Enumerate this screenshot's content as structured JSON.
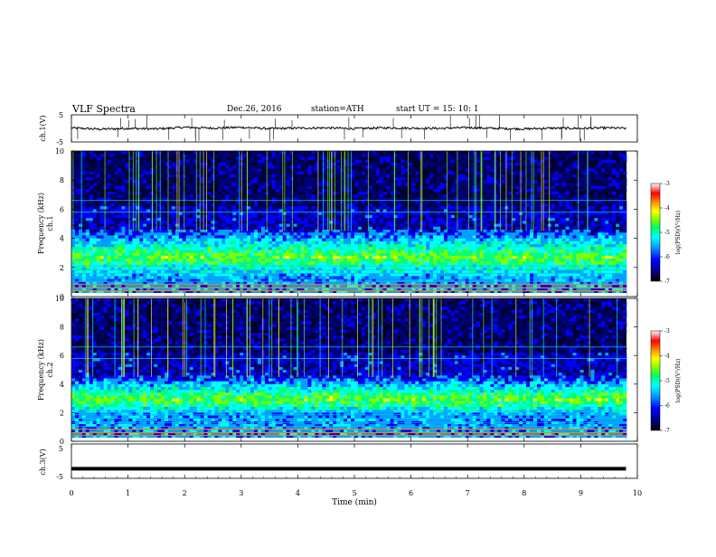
{
  "header": {
    "title": "VLF  Spectra",
    "date": "Dec.26, 2016",
    "station": "station=ATH",
    "start_ut": "start  UT  =    15: 10: 1"
  },
  "colors": {
    "spectrogram_scale": [
      "#000000",
      "#00007a",
      "#0000ff",
      "#00a0ff",
      "#00ffff",
      "#00ff80",
      "#80ff00",
      "#ffff00",
      "#ff8000",
      "#ff0000",
      "#ffffff"
    ],
    "trace": "#000000"
  },
  "chart_data": [
    {
      "type": "line",
      "panel": "ch.1 waveform",
      "ylabel": "ch.1(V)",
      "ylim": [
        -5,
        5
      ],
      "yticks": [
        "5",
        "-5"
      ],
      "xlim": [
        0,
        10
      ],
      "x_units": "min",
      "x": [
        0,
        0.5,
        1,
        1.5,
        2,
        2.5,
        3,
        3.5,
        4,
        4.5,
        5,
        5.5,
        6,
        6.5,
        7,
        7.5,
        8,
        8.5,
        9,
        9.5,
        9.8
      ],
      "y": [
        0.2,
        -0.3,
        0.0,
        -0.2,
        0.4,
        0.1,
        0.4,
        -0.1,
        0.1,
        0.2,
        -0.1,
        0.2,
        0.1,
        0.0,
        0.3,
        0.0,
        -0.2,
        0.1,
        0.0,
        0.2,
        0.0
      ]
    },
    {
      "type": "heatmap",
      "panel": "ch.1 spectrogram",
      "ylabel": "ch.1\nFrequency (kHz)",
      "ylim": [
        0,
        10
      ],
      "yticks": [
        "0",
        "2",
        "4",
        "6",
        "8",
        "10"
      ],
      "xlim": [
        0,
        10
      ],
      "colorbar_label": "log(PSD)(V²/Hz)",
      "colorbar_range": [
        -7,
        -3
      ],
      "colorbar_ticks": [
        "-3",
        "-4",
        "-5",
        "-6",
        "-7"
      ],
      "band_kHz": [
        1.5,
        4.5
      ],
      "band_level": -5
    },
    {
      "type": "heatmap",
      "panel": "ch.2 spectrogram",
      "ylabel": "ch.2\nFrequency (kHz)",
      "ylim": [
        0,
        10
      ],
      "yticks": [
        "0",
        "2",
        "4",
        "6",
        "8",
        "10"
      ],
      "xlim": [
        0,
        10
      ],
      "colorbar_label": "log(PSD)(V²/Hz)",
      "colorbar_range": [
        -7,
        -3
      ],
      "colorbar_ticks": [
        "-3",
        "-4",
        "-5",
        "-6",
        "-7"
      ],
      "band_kHz": [
        2.0,
        4.5
      ],
      "band_level": -5
    },
    {
      "type": "line",
      "panel": "ch.3 waveform",
      "ylabel": "ch.3(V)",
      "ylim": [
        -5,
        5
      ],
      "yticks": [
        "5",
        "-5"
      ],
      "xlim": [
        0,
        10
      ],
      "x_units": "min",
      "x": [
        0,
        9.8
      ],
      "y": [
        -2.2,
        -2.2
      ]
    }
  ],
  "xaxis": {
    "label": "Time  (min)",
    "ticks": [
      "0",
      "1",
      "2",
      "3",
      "4",
      "5",
      "6",
      "7",
      "8",
      "9",
      "10"
    ]
  }
}
